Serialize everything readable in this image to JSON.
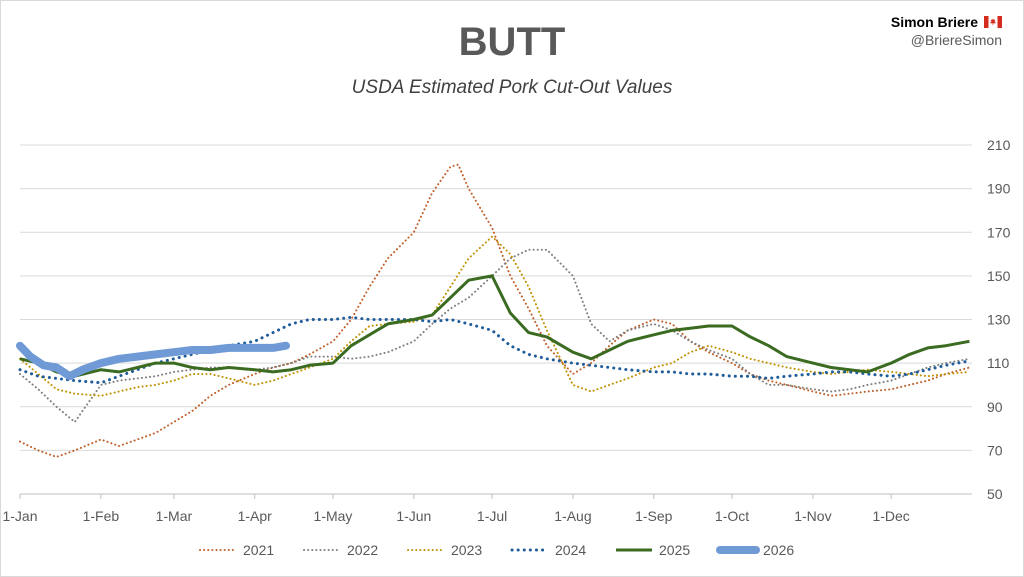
{
  "header": {
    "title": "BUTT",
    "subtitle": "USDA Estimated Pork Cut-Out Values",
    "author_name": "Simon Briere",
    "author_handle": "@BriereSimon",
    "flag_icon": "canada-flag-icon"
  },
  "chart_data": {
    "type": "line",
    "title": "BUTT",
    "subtitle": "USDA Estimated Pork Cut-Out Values",
    "xlabel": "",
    "ylabel": "",
    "ylim": [
      50,
      210
    ],
    "y_ticks": [
      50,
      70,
      90,
      110,
      130,
      150,
      170,
      190,
      210
    ],
    "x_ticks": [
      "1-Jan",
      "1-Feb",
      "1-Mar",
      "1-Apr",
      "1-May",
      "1-Jun",
      "1-Jul",
      "1-Aug",
      "1-Sep",
      "1-Oct",
      "1-Nov",
      "1-Dec"
    ],
    "grid": "horizontal",
    "legend_position": "bottom",
    "series": [
      {
        "name": "2021",
        "color": "#c0602b",
        "style": "dotted",
        "points": [
          [
            "1-Jan",
            74
          ],
          [
            "8-Jan",
            70
          ],
          [
            "15-Jan",
            67
          ],
          [
            "22-Jan",
            70
          ],
          [
            "1-Feb",
            75
          ],
          [
            "8-Feb",
            72
          ],
          [
            "15-Feb",
            75
          ],
          [
            "22-Feb",
            78
          ],
          [
            "1-Mar",
            83
          ],
          [
            "8-Mar",
            88
          ],
          [
            "15-Mar",
            95
          ],
          [
            "22-Mar",
            100
          ],
          [
            "1-Apr",
            105
          ],
          [
            "8-Apr",
            108
          ],
          [
            "15-Apr",
            110
          ],
          [
            "22-Apr",
            114
          ],
          [
            "1-May",
            120
          ],
          [
            "8-May",
            130
          ],
          [
            "15-May",
            145
          ],
          [
            "22-May",
            158
          ],
          [
            "1-Jun",
            170
          ],
          [
            "8-Jun",
            188
          ],
          [
            "15-Jun",
            200
          ],
          [
            "18-Jun",
            201
          ],
          [
            "22-Jun",
            190
          ],
          [
            "1-Jul",
            172
          ],
          [
            "8-Jul",
            150
          ],
          [
            "15-Jul",
            135
          ],
          [
            "22-Jul",
            118
          ],
          [
            "1-Aug",
            105
          ],
          [
            "8-Aug",
            110
          ],
          [
            "15-Aug",
            118
          ],
          [
            "22-Aug",
            125
          ],
          [
            "1-Sep",
            130
          ],
          [
            "8-Sep",
            128
          ],
          [
            "15-Sep",
            120
          ],
          [
            "22-Sep",
            115
          ],
          [
            "1-Oct",
            110
          ],
          [
            "8-Oct",
            105
          ],
          [
            "15-Oct",
            102
          ],
          [
            "22-Oct",
            100
          ],
          [
            "1-Nov",
            97
          ],
          [
            "8-Nov",
            95
          ],
          [
            "15-Nov",
            96
          ],
          [
            "22-Nov",
            97
          ],
          [
            "1-Dec",
            98
          ],
          [
            "8-Dec",
            100
          ],
          [
            "15-Dec",
            102
          ],
          [
            "22-Dec",
            105
          ],
          [
            "31-Dec",
            108
          ]
        ]
      },
      {
        "name": "2022",
        "color": "#7f7f7f",
        "style": "dotted",
        "points": [
          [
            "1-Jan",
            105
          ],
          [
            "8-Jan",
            98
          ],
          [
            "15-Jan",
            90
          ],
          [
            "22-Jan",
            83
          ],
          [
            "1-Feb",
            100
          ],
          [
            "8-Feb",
            102
          ],
          [
            "15-Feb",
            103
          ],
          [
            "22-Feb",
            104
          ],
          [
            "1-Mar",
            106
          ],
          [
            "8-Mar",
            107
          ],
          [
            "15-Mar",
            108
          ],
          [
            "22-Mar",
            108
          ],
          [
            "1-Apr",
            107
          ],
          [
            "8-Apr",
            108
          ],
          [
            "15-Apr",
            110
          ],
          [
            "22-Apr",
            113
          ],
          [
            "1-May",
            113
          ],
          [
            "8-May",
            112
          ],
          [
            "15-May",
            113
          ],
          [
            "22-May",
            115
          ],
          [
            "1-Jun",
            120
          ],
          [
            "8-Jun",
            128
          ],
          [
            "15-Jun",
            135
          ],
          [
            "22-Jun",
            140
          ],
          [
            "1-Jul",
            150
          ],
          [
            "8-Jul",
            158
          ],
          [
            "15-Jul",
            162
          ],
          [
            "22-Jul",
            162
          ],
          [
            "1-Aug",
            150
          ],
          [
            "8-Aug",
            128
          ],
          [
            "15-Aug",
            120
          ],
          [
            "22-Aug",
            125
          ],
          [
            "1-Sep",
            128
          ],
          [
            "8-Sep",
            125
          ],
          [
            "15-Sep",
            120
          ],
          [
            "22-Sep",
            116
          ],
          [
            "1-Oct",
            112
          ],
          [
            "8-Oct",
            105
          ],
          [
            "15-Oct",
            100
          ],
          [
            "22-Oct",
            100
          ],
          [
            "1-Nov",
            98
          ],
          [
            "8-Nov",
            97
          ],
          [
            "15-Nov",
            98
          ],
          [
            "22-Nov",
            100
          ],
          [
            "1-Dec",
            102
          ],
          [
            "8-Dec",
            105
          ],
          [
            "15-Dec",
            108
          ],
          [
            "22-Dec",
            110
          ],
          [
            "31-Dec",
            112
          ]
        ]
      },
      {
        "name": "2023",
        "color": "#bf9000",
        "style": "dotted",
        "points": [
          [
            "1-Jan",
            112
          ],
          [
            "8-Jan",
            105
          ],
          [
            "15-Jan",
            98
          ],
          [
            "22-Jan",
            96
          ],
          [
            "1-Feb",
            95
          ],
          [
            "8-Feb",
            97
          ],
          [
            "15-Feb",
            99
          ],
          [
            "22-Feb",
            100
          ],
          [
            "1-Mar",
            102
          ],
          [
            "8-Mar",
            105
          ],
          [
            "15-Mar",
            105
          ],
          [
            "22-Mar",
            103
          ],
          [
            "1-Apr",
            100
          ],
          [
            "8-Apr",
            102
          ],
          [
            "15-Apr",
            105
          ],
          [
            "22-Apr",
            108
          ],
          [
            "1-May",
            112
          ],
          [
            "8-May",
            120
          ],
          [
            "15-May",
            127
          ],
          [
            "22-May",
            128
          ],
          [
            "1-Jun",
            129
          ],
          [
            "8-Jun",
            132
          ],
          [
            "15-Jun",
            145
          ],
          [
            "22-Jun",
            158
          ],
          [
            "1-Jul",
            168
          ],
          [
            "8-Jul",
            160
          ],
          [
            "15-Jul",
            145
          ],
          [
            "22-Jul",
            125
          ],
          [
            "1-Aug",
            100
          ],
          [
            "8-Aug",
            97
          ],
          [
            "15-Aug",
            100
          ],
          [
            "22-Aug",
            103
          ],
          [
            "1-Sep",
            108
          ],
          [
            "8-Sep",
            110
          ],
          [
            "15-Sep",
            115
          ],
          [
            "22-Sep",
            118
          ],
          [
            "1-Oct",
            115
          ],
          [
            "8-Oct",
            112
          ],
          [
            "15-Oct",
            110
          ],
          [
            "22-Oct",
            108
          ],
          [
            "1-Nov",
            106
          ],
          [
            "8-Nov",
            105
          ],
          [
            "15-Nov",
            106
          ],
          [
            "22-Nov",
            107
          ],
          [
            "1-Dec",
            106
          ],
          [
            "8-Dec",
            105
          ],
          [
            "15-Dec",
            104
          ],
          [
            "22-Dec",
            105
          ],
          [
            "31-Dec",
            106
          ]
        ]
      },
      {
        "name": "2024",
        "color": "#1f5c99",
        "style": "dotted",
        "points": [
          [
            "1-Jan",
            107
          ],
          [
            "8-Jan",
            104
          ],
          [
            "15-Jan",
            103
          ],
          [
            "22-Jan",
            102
          ],
          [
            "1-Feb",
            101
          ],
          [
            "8-Feb",
            104
          ],
          [
            "15-Feb",
            107
          ],
          [
            "22-Feb",
            110
          ],
          [
            "1-Mar",
            112
          ],
          [
            "8-Mar",
            114
          ],
          [
            "15-Mar",
            116
          ],
          [
            "22-Mar",
            118
          ],
          [
            "1-Apr",
            120
          ],
          [
            "8-Apr",
            124
          ],
          [
            "15-Apr",
            128
          ],
          [
            "22-Apr",
            130
          ],
          [
            "1-May",
            130
          ],
          [
            "8-May",
            131
          ],
          [
            "15-May",
            130
          ],
          [
            "22-May",
            130
          ],
          [
            "1-Jun",
            130
          ],
          [
            "8-Jun",
            129
          ],
          [
            "15-Jun",
            130
          ],
          [
            "22-Jun",
            128
          ],
          [
            "1-Jul",
            125
          ],
          [
            "8-Jul",
            118
          ],
          [
            "15-Jul",
            114
          ],
          [
            "22-Jul",
            112
          ],
          [
            "1-Aug",
            110
          ],
          [
            "8-Aug",
            109
          ],
          [
            "15-Aug",
            108
          ],
          [
            "22-Aug",
            107
          ],
          [
            "1-Sep",
            106
          ],
          [
            "8-Sep",
            106
          ],
          [
            "15-Sep",
            105
          ],
          [
            "22-Sep",
            105
          ],
          [
            "1-Oct",
            104
          ],
          [
            "8-Oct",
            104
          ],
          [
            "15-Oct",
            103
          ],
          [
            "22-Oct",
            104
          ],
          [
            "1-Nov",
            105
          ],
          [
            "8-Nov",
            106
          ],
          [
            "15-Nov",
            106
          ],
          [
            "22-Nov",
            105
          ],
          [
            "1-Dec",
            104
          ],
          [
            "8-Dec",
            105
          ],
          [
            "15-Dec",
            107
          ],
          [
            "22-Dec",
            109
          ],
          [
            "31-Dec",
            111
          ]
        ]
      },
      {
        "name": "2025",
        "color": "#3a6b21",
        "style": "solid",
        "points": [
          [
            "1-Jan",
            112
          ],
          [
            "8-Jan",
            110
          ],
          [
            "15-Jan",
            106
          ],
          [
            "22-Jan",
            104
          ],
          [
            "1-Feb",
            107
          ],
          [
            "8-Feb",
            106
          ],
          [
            "15-Feb",
            108
          ],
          [
            "22-Feb",
            110
          ],
          [
            "1-Mar",
            110
          ],
          [
            "8-Mar",
            108
          ],
          [
            "15-Mar",
            107
          ],
          [
            "22-Mar",
            108
          ],
          [
            "1-Apr",
            107
          ],
          [
            "8-Apr",
            106
          ],
          [
            "15-Apr",
            107
          ],
          [
            "22-Apr",
            109
          ],
          [
            "1-May",
            110
          ],
          [
            "8-May",
            118
          ],
          [
            "15-May",
            123
          ],
          [
            "22-May",
            128
          ],
          [
            "1-Jun",
            130
          ],
          [
            "8-Jun",
            132
          ],
          [
            "15-Jun",
            140
          ],
          [
            "22-Jun",
            148
          ],
          [
            "1-Jul",
            150
          ],
          [
            "8-Jul",
            133
          ],
          [
            "15-Jul",
            124
          ],
          [
            "22-Jul",
            122
          ],
          [
            "1-Aug",
            115
          ],
          [
            "8-Aug",
            112
          ],
          [
            "15-Aug",
            116
          ],
          [
            "22-Aug",
            120
          ],
          [
            "1-Sep",
            123
          ],
          [
            "8-Sep",
            125
          ],
          [
            "15-Sep",
            126
          ],
          [
            "22-Sep",
            127
          ],
          [
            "1-Oct",
            127
          ],
          [
            "8-Oct",
            122
          ],
          [
            "15-Oct",
            118
          ],
          [
            "22-Oct",
            113
          ],
          [
            "1-Nov",
            110
          ],
          [
            "8-Nov",
            108
          ],
          [
            "15-Nov",
            107
          ],
          [
            "22-Nov",
            106
          ],
          [
            "1-Dec",
            110
          ],
          [
            "8-Dec",
            114
          ],
          [
            "15-Dec",
            117
          ],
          [
            "22-Dec",
            118
          ],
          [
            "31-Dec",
            120
          ]
        ]
      },
      {
        "name": "2026",
        "color": "#6f9ad6",
        "style": "thick",
        "points": [
          [
            "1-Jan",
            118
          ],
          [
            "5-Jan",
            113
          ],
          [
            "10-Jan",
            109
          ],
          [
            "15-Jan",
            108
          ],
          [
            "20-Jan",
            104
          ],
          [
            "25-Jan",
            107
          ],
          [
            "1-Feb",
            110
          ],
          [
            "8-Feb",
            112
          ],
          [
            "15-Feb",
            113
          ],
          [
            "22-Feb",
            114
          ],
          [
            "1-Mar",
            115
          ],
          [
            "8-Mar",
            116
          ],
          [
            "15-Mar",
            116
          ],
          [
            "22-Mar",
            117
          ],
          [
            "1-Apr",
            117
          ],
          [
            "8-Apr",
            117
          ],
          [
            "13-Apr",
            118
          ]
        ]
      }
    ]
  }
}
